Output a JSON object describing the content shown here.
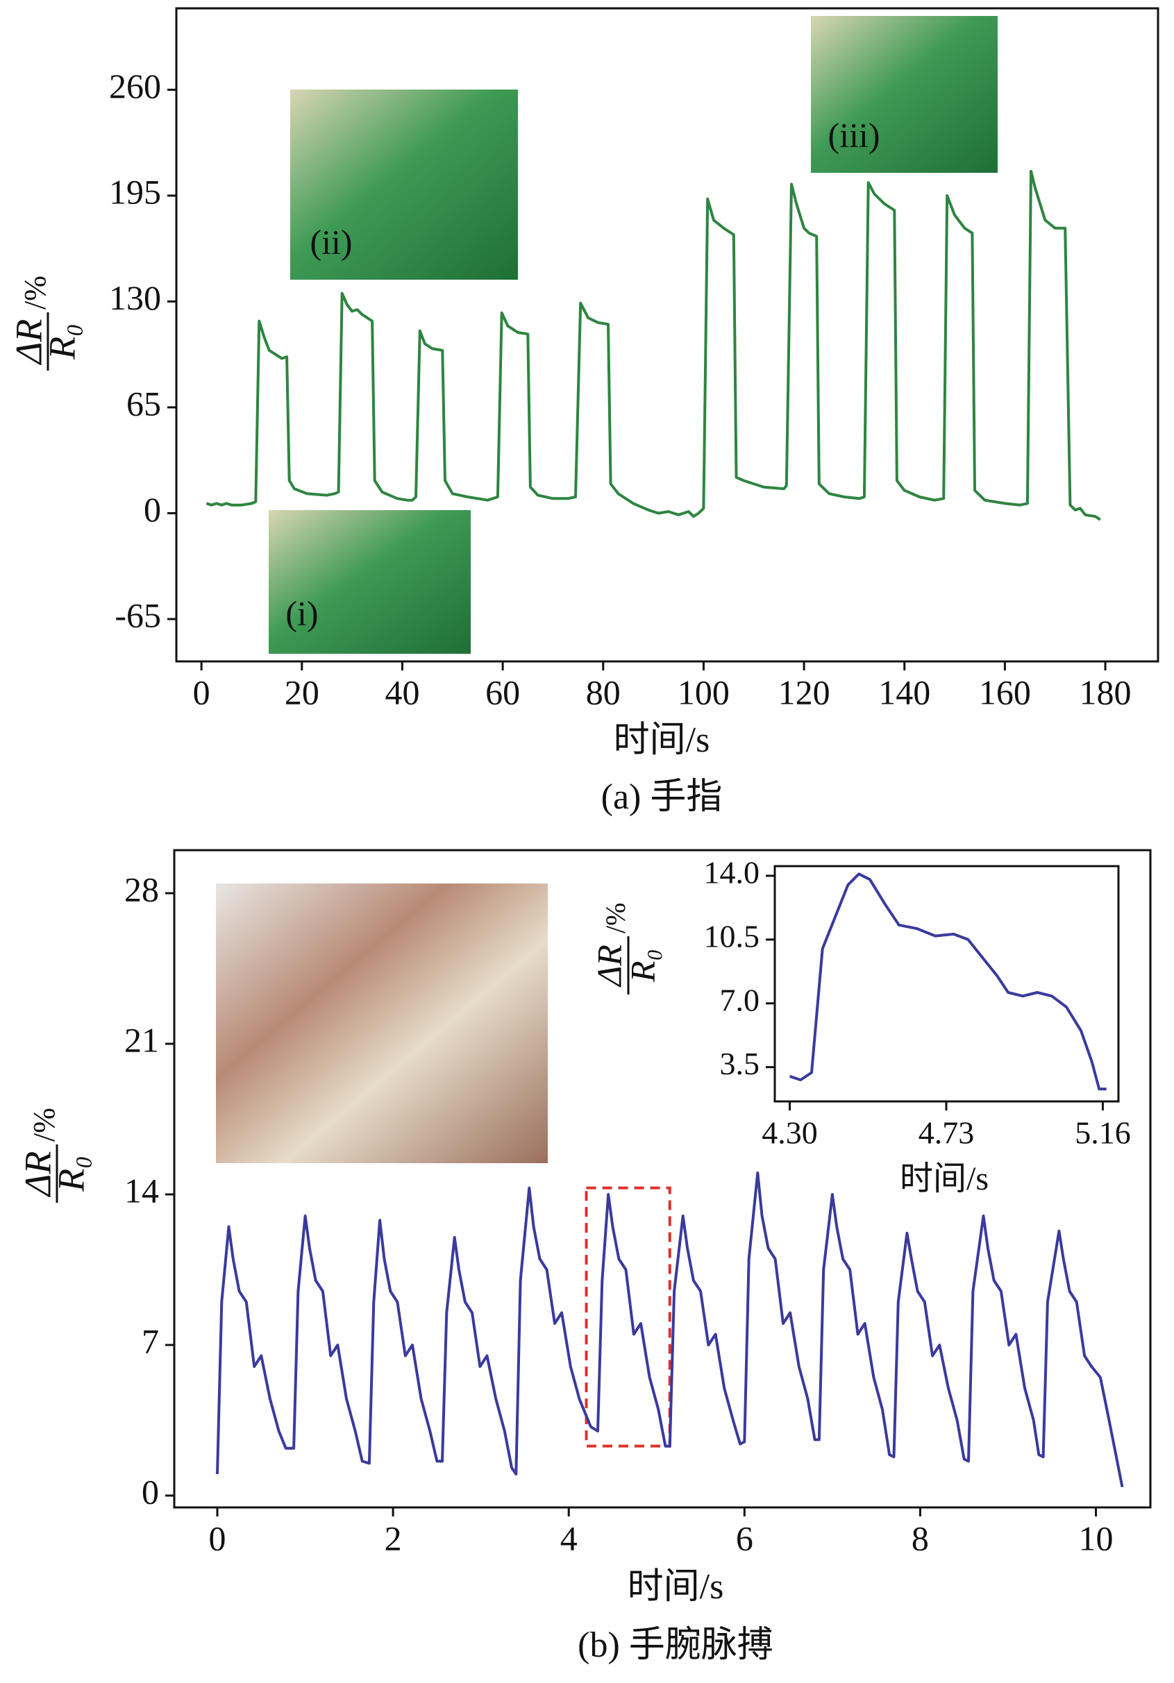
{
  "chart_data": [
    {
      "type": "line",
      "xlabel": "时间/s",
      "caption": "(a) 手指",
      "ylabel": {
        "numerator": "ΔR",
        "denominator": "R₀",
        "unit": "/%"
      },
      "annotations": [
        "(i)",
        "(ii)",
        "(iii)"
      ],
      "xlim": [
        -5,
        190.5
      ],
      "ylim": [
        -91,
        310
      ],
      "xticks": [
        0,
        20,
        40,
        60,
        80,
        100,
        120,
        140,
        160,
        180
      ],
      "yticks": [
        -65,
        0,
        65,
        130,
        195,
        260
      ],
      "x": [
        1,
        2,
        3,
        4,
        5,
        6,
        8,
        10,
        10.8,
        11.5,
        12.5,
        13.5,
        15,
        16,
        17,
        17.5,
        18.5,
        21,
        25,
        26.5,
        27.3,
        28,
        29,
        30,
        31,
        32,
        34,
        34.5,
        36,
        39,
        41,
        42,
        42.7,
        43.5,
        44.5,
        46,
        48,
        48.5,
        50,
        53,
        55,
        57,
        58,
        59,
        59.8,
        61,
        63,
        65,
        65.5,
        67,
        70,
        73,
        74.5,
        75.5,
        77,
        79,
        81,
        81.5,
        83,
        86,
        89,
        91,
        93,
        95,
        97,
        98,
        99,
        100,
        100.8,
        102,
        104,
        106,
        106.5,
        108,
        112,
        116,
        116.5,
        117.5,
        118.5,
        120,
        121,
        122.5,
        123,
        125,
        128,
        131,
        132,
        132.8,
        134,
        136,
        138,
        138.5,
        140,
        143,
        146,
        147.8,
        148.5,
        150,
        152,
        153.5,
        154,
        156,
        160,
        163,
        164.5,
        165.2,
        166,
        168,
        170,
        172,
        173,
        174,
        175,
        176,
        178,
        179
      ],
      "series": [
        {
          "color": "#2e8540",
          "values": [
            6,
            5,
            6,
            5,
            6,
            5,
            5,
            6,
            7,
            118,
            108,
            100,
            97,
            95,
            96,
            20,
            15,
            12,
            11,
            12,
            13,
            135,
            128,
            124,
            125,
            122,
            118,
            20,
            13,
            9,
            8,
            8,
            10,
            112,
            104,
            101,
            100,
            20,
            12,
            10,
            9,
            8,
            9,
            10,
            123,
            115,
            111,
            110,
            16,
            11,
            9,
            9,
            10,
            129,
            120,
            117,
            116,
            18,
            12,
            6,
            2,
            0,
            1,
            -1,
            1,
            -2,
            0,
            3,
            193,
            180,
            175,
            171,
            22,
            20,
            16,
            15,
            17,
            202,
            190,
            175,
            172,
            170,
            18,
            12,
            10,
            9,
            10,
            203,
            196,
            190,
            186,
            20,
            14,
            10,
            8,
            9,
            195,
            183,
            175,
            172,
            14,
            8,
            6,
            5,
            6,
            210,
            200,
            180,
            175,
            175,
            5,
            2,
            3,
            -1,
            -2,
            -4
          ]
        }
      ]
    },
    {
      "type": "line",
      "xlabel": "时间/s",
      "caption": "(b) 手腕脉搏",
      "ylabel": {
        "numerator": "ΔR",
        "denominator": "R₀",
        "unit": "/%"
      },
      "xlim": [
        -0.49,
        10.62
      ],
      "ylim": [
        -0.55,
        30.0
      ],
      "xticks": [
        0,
        2,
        4,
        6,
        8,
        10
      ],
      "yticks": [
        0,
        7,
        14,
        21,
        28
      ],
      "highlight": {
        "x": [
          4.2,
          5.15
        ],
        "y": [
          2.3,
          14.3
        ],
        "color": "#e0302a"
      },
      "x": [
        0,
        0.05,
        0.13,
        0.18,
        0.25,
        0.33,
        0.42,
        0.5,
        0.6,
        0.7,
        0.78,
        0.87,
        0.92,
        1.0,
        1.05,
        1.12,
        1.2,
        1.29,
        1.37,
        1.47,
        1.57,
        1.65,
        1.73,
        1.78,
        1.85,
        1.9,
        1.97,
        2.05,
        2.14,
        2.22,
        2.32,
        2.42,
        2.5,
        2.56,
        2.61,
        2.7,
        2.75,
        2.82,
        2.9,
        2.99,
        3.07,
        3.17,
        3.27,
        3.35,
        3.4,
        3.45,
        3.55,
        3.6,
        3.67,
        3.75,
        3.84,
        3.92,
        4.02,
        4.12,
        4.25,
        4.33,
        4.38,
        4.45,
        4.5,
        4.57,
        4.65,
        4.74,
        4.82,
        4.92,
        5.02,
        5.1,
        5.15,
        5.2,
        5.3,
        5.35,
        5.42,
        5.5,
        5.59,
        5.67,
        5.77,
        5.87,
        5.95,
        6.0,
        6.05,
        6.15,
        6.2,
        6.27,
        6.35,
        6.44,
        6.52,
        6.62,
        6.72,
        6.8,
        6.85,
        6.9,
        7.0,
        7.05,
        7.12,
        7.2,
        7.29,
        7.37,
        7.47,
        7.57,
        7.65,
        7.7,
        7.75,
        7.85,
        7.9,
        7.97,
        8.05,
        8.14,
        8.22,
        8.32,
        8.42,
        8.5,
        8.55,
        8.6,
        8.72,
        8.77,
        8.84,
        8.92,
        9.01,
        9.09,
        9.19,
        9.29,
        9.35,
        9.4,
        9.45,
        9.58,
        9.63,
        9.7,
        9.78,
        9.87,
        9.95,
        10.05,
        10.15,
        10.3
      ],
      "series": [
        {
          "color": "#3a3a9e",
          "values": [
            1,
            9,
            12.5,
            11,
            9.5,
            9,
            6,
            6.5,
            4.5,
            3,
            2.2,
            2.2,
            9.5,
            13,
            11.5,
            10,
            9.5,
            6.5,
            7,
            4.5,
            3,
            1.6,
            1.5,
            9,
            12.8,
            11,
            9.5,
            9,
            6.5,
            7,
            4.5,
            3,
            1.6,
            1.6,
            8.5,
            12,
            10.5,
            9,
            8.5,
            6,
            6.5,
            4.5,
            3,
            1.3,
            1.0,
            10,
            14.3,
            12.5,
            11,
            10.5,
            8,
            8.5,
            6,
            4.5,
            3.2,
            3,
            10,
            14,
            12.5,
            11,
            10.5,
            7.5,
            8,
            5.5,
            4,
            2.3,
            2.3,
            9.5,
            13,
            11.5,
            10,
            9.5,
            7,
            7.5,
            5,
            3.5,
            2.4,
            2.5,
            11,
            15,
            13,
            11.5,
            11,
            8,
            8.5,
            6,
            4.5,
            2.6,
            2.6,
            10.5,
            14,
            12.5,
            11,
            10.5,
            7.5,
            8,
            5.5,
            4,
            1.9,
            1.8,
            9,
            12.2,
            11,
            9.5,
            9,
            6.5,
            7,
            5,
            3.5,
            1.7,
            1.6,
            9.5,
            13,
            11.5,
            10,
            9.5,
            7,
            7.5,
            5,
            3.5,
            1.9,
            1.8,
            9,
            12.3,
            11,
            9.5,
            9,
            6.5,
            6,
            5.5,
            3.5,
            0.4
          ]
        }
      ]
    },
    {
      "type": "line",
      "xlabel": "时间/s",
      "ylabel": {
        "numerator": "ΔR",
        "denominator": "R₀",
        "unit": "/%"
      },
      "xlim": [
        4.259,
        5.203
      ],
      "ylim": [
        1.62,
        14.53
      ],
      "xticks": [
        {
          "value": 4.3,
          "label": "4.30"
        },
        4.73,
        5.16
      ],
      "yticks": [
        3.5,
        {
          "value": 7,
          "label": "7.0"
        },
        10.5,
        {
          "value": 14,
          "label": "14.0"
        }
      ],
      "x": [
        4.3,
        4.33,
        4.36,
        4.39,
        4.42,
        4.46,
        4.49,
        4.52,
        4.56,
        4.6,
        4.65,
        4.7,
        4.75,
        4.79,
        4.83,
        4.87,
        4.9,
        4.94,
        4.98,
        5.02,
        5.06,
        5.1,
        5.13,
        5.15,
        5.17
      ],
      "series": [
        {
          "color": "#3a3a9e",
          "values": [
            3,
            2.8,
            3.2,
            10,
            11.5,
            13.5,
            14.1,
            13.8,
            12.5,
            11.3,
            11.1,
            10.7,
            10.8,
            10.5,
            9.5,
            8.5,
            7.6,
            7.4,
            7.6,
            7.4,
            6.8,
            5.5,
            3.8,
            2.3,
            2.3
          ]
        }
      ]
    }
  ]
}
